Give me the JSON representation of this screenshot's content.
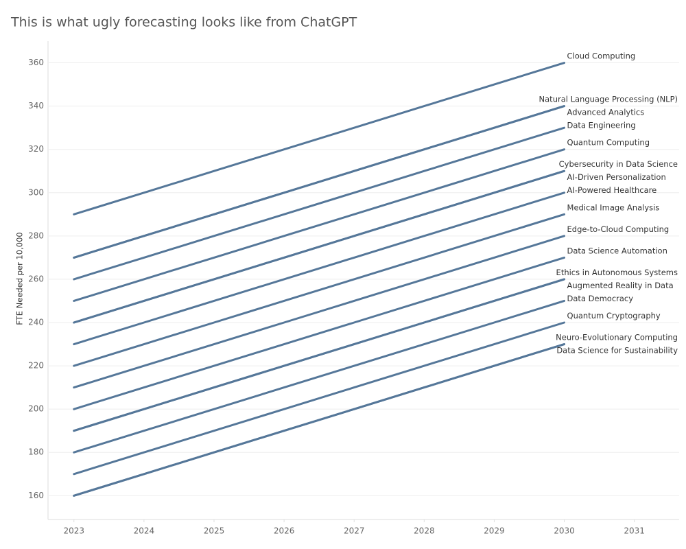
{
  "chart_data": {
    "type": "line",
    "title": "This is what ugly forecasting looks like from ChatGPT",
    "y_label": "FTE Needed per 10,000",
    "x": [
      2023,
      2024,
      2025,
      2026,
      2027,
      2028,
      2029,
      2030
    ],
    "xlim": [
      2022.63,
      2031.64
    ],
    "xticks": [
      2023,
      2024,
      2025,
      2026,
      2027,
      2028,
      2029,
      2030,
      2031
    ],
    "ylim": [
      149,
      370
    ],
    "yticks": [
      160,
      180,
      200,
      220,
      240,
      260,
      280,
      300,
      320,
      340,
      360
    ],
    "grid": true,
    "series": [
      {
        "name": "Cloud Computing",
        "color": "#557799",
        "values": [
          290,
          300,
          310,
          320,
          330,
          340,
          350,
          360
        ]
      },
      {
        "name": "Natural Language Processing (NLP)",
        "color": "#557799",
        "values": [
          270,
          280,
          290,
          300,
          310,
          320,
          330,
          340
        ]
      },
      {
        "name": "Advanced Analytics",
        "color": "#557799",
        "values": [
          270,
          280,
          290,
          300,
          310,
          320,
          330,
          340
        ]
      },
      {
        "name": "Data Engineering",
        "color": "#557799",
        "values": [
          260,
          270,
          280,
          290,
          300,
          310,
          320,
          330
        ]
      },
      {
        "name": "Quantum Computing",
        "color": "#557799",
        "values": [
          250,
          260,
          270,
          280,
          290,
          300,
          310,
          320
        ]
      },
      {
        "name": "Cybersecurity in Data Science",
        "color": "#557799",
        "values": [
          240,
          250,
          260,
          270,
          280,
          290,
          300,
          310
        ]
      },
      {
        "name": "AI-Driven Personalization",
        "color": "#557799",
        "values": [
          240,
          250,
          260,
          270,
          280,
          290,
          300,
          310
        ]
      },
      {
        "name": "AI-Powered Healthcare",
        "color": "#557799",
        "values": [
          230,
          240,
          250,
          260,
          270,
          280,
          290,
          300
        ]
      },
      {
        "name": "Medical Image Analysis",
        "color": "#557799",
        "values": [
          220,
          230,
          240,
          250,
          260,
          270,
          280,
          290
        ]
      },
      {
        "name": "Edge-to-Cloud Computing",
        "color": "#557799",
        "values": [
          210,
          220,
          230,
          240,
          250,
          260,
          270,
          280
        ]
      },
      {
        "name": "Data Science Automation",
        "color": "#557799",
        "values": [
          200,
          210,
          220,
          230,
          240,
          250,
          260,
          270
        ]
      },
      {
        "name": "Ethics in Autonomous Systems",
        "color": "#557799",
        "values": [
          190,
          200,
          210,
          220,
          230,
          240,
          250,
          260
        ]
      },
      {
        "name": "Augmented Reality in Data",
        "color": "#557799",
        "values": [
          190,
          200,
          210,
          220,
          230,
          240,
          250,
          260
        ]
      },
      {
        "name": "Data Democracy",
        "color": "#557799",
        "values": [
          180,
          190,
          200,
          210,
          220,
          230,
          240,
          250
        ]
      },
      {
        "name": "Quantum Cryptography",
        "color": "#557799",
        "values": [
          170,
          180,
          190,
          200,
          210,
          220,
          230,
          240
        ]
      },
      {
        "name": "Neuro-Evolutionary Computing",
        "color": "#557799",
        "values": [
          160,
          170,
          180,
          190,
          200,
          210,
          220,
          230
        ]
      },
      {
        "name": "Data Science for Sustainability",
        "color": "#557799",
        "values": [
          160,
          170,
          180,
          190,
          200,
          210,
          220,
          230
        ]
      }
    ]
  }
}
